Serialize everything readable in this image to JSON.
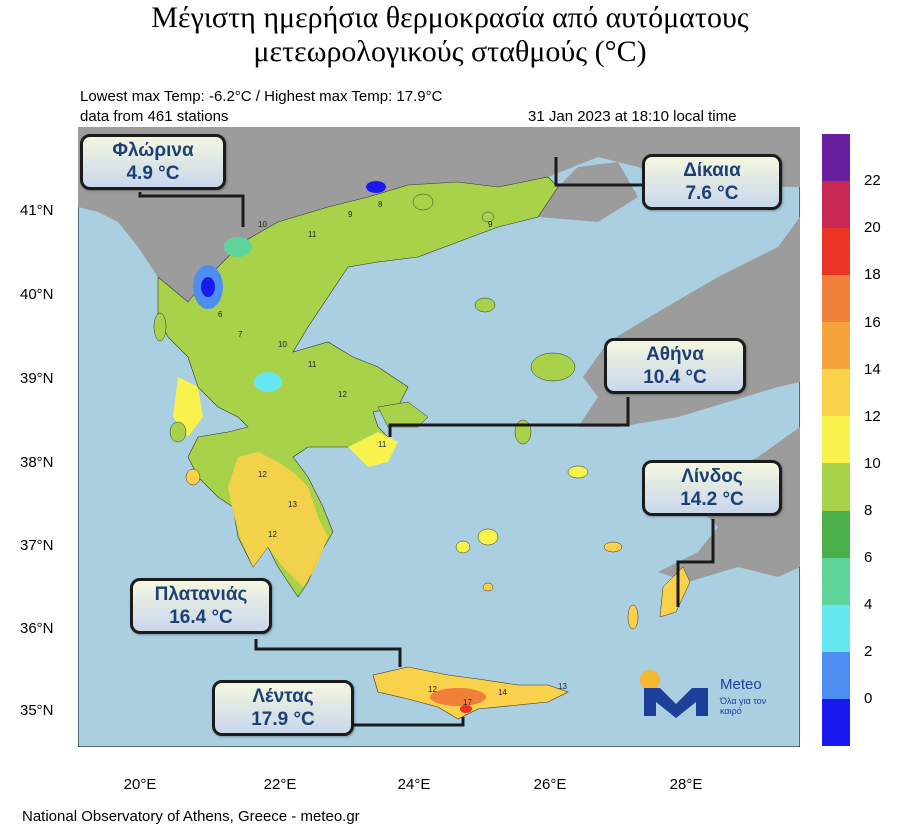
{
  "title": {
    "line1": "Μέγιστη ημερήσια θερμοκρασία από αυτόματους",
    "line2": "μετεωρολογικούς σταθμούς (°C)"
  },
  "info": {
    "extremes": "Lowest max Temp: -6.2°C / Highest max Temp: 17.9°C",
    "stations": "data from 461 stations",
    "datetime": "31 Jan 2023 at 18:10 local time"
  },
  "axes": {
    "lat_labels": [
      "41°N",
      "40°N",
      "39°N",
      "38°N",
      "37°N",
      "36°N",
      "35°N"
    ],
    "lon_labels": [
      "20°E",
      "22°E",
      "24°E",
      "26°E",
      "28°E"
    ]
  },
  "colorbar": {
    "labels": [
      "22",
      "20",
      "18",
      "16",
      "14",
      "12",
      "10",
      "8",
      "6",
      "4",
      "2",
      "0"
    ],
    "colors": [
      "#6a1fa1",
      "#c92855",
      "#ea3323",
      "#f07f3a",
      "#f5a43b",
      "#fad14a",
      "#f8f24d",
      "#a8d24a",
      "#4aae4a",
      "#5fd49a",
      "#66e8f0",
      "#4e8ef0",
      "#1a1af0"
    ]
  },
  "callouts": [
    {
      "name": "Φλώρινα",
      "value": "4.9 °C"
    },
    {
      "name": "Δίκαια",
      "value": "7.6 °C"
    },
    {
      "name": "Αθήνα",
      "value": "10.4 °C"
    },
    {
      "name": "Λίνδος",
      "value": "14.2 °C"
    },
    {
      "name": "Πλατανιάς",
      "value": "16.4 °C"
    },
    {
      "name": "Λέντας",
      "value": "17.9 °C"
    }
  ],
  "logo": {
    "brand": "Meteo",
    "tagline": "Όλα για τον καιρό"
  },
  "footer": "National Observatory of Athens, Greece - meteo.gr",
  "colors": {
    "sea": "#a9cfe0",
    "land_other": "#9c9c9c",
    "land_greece": "#a8d24a"
  }
}
